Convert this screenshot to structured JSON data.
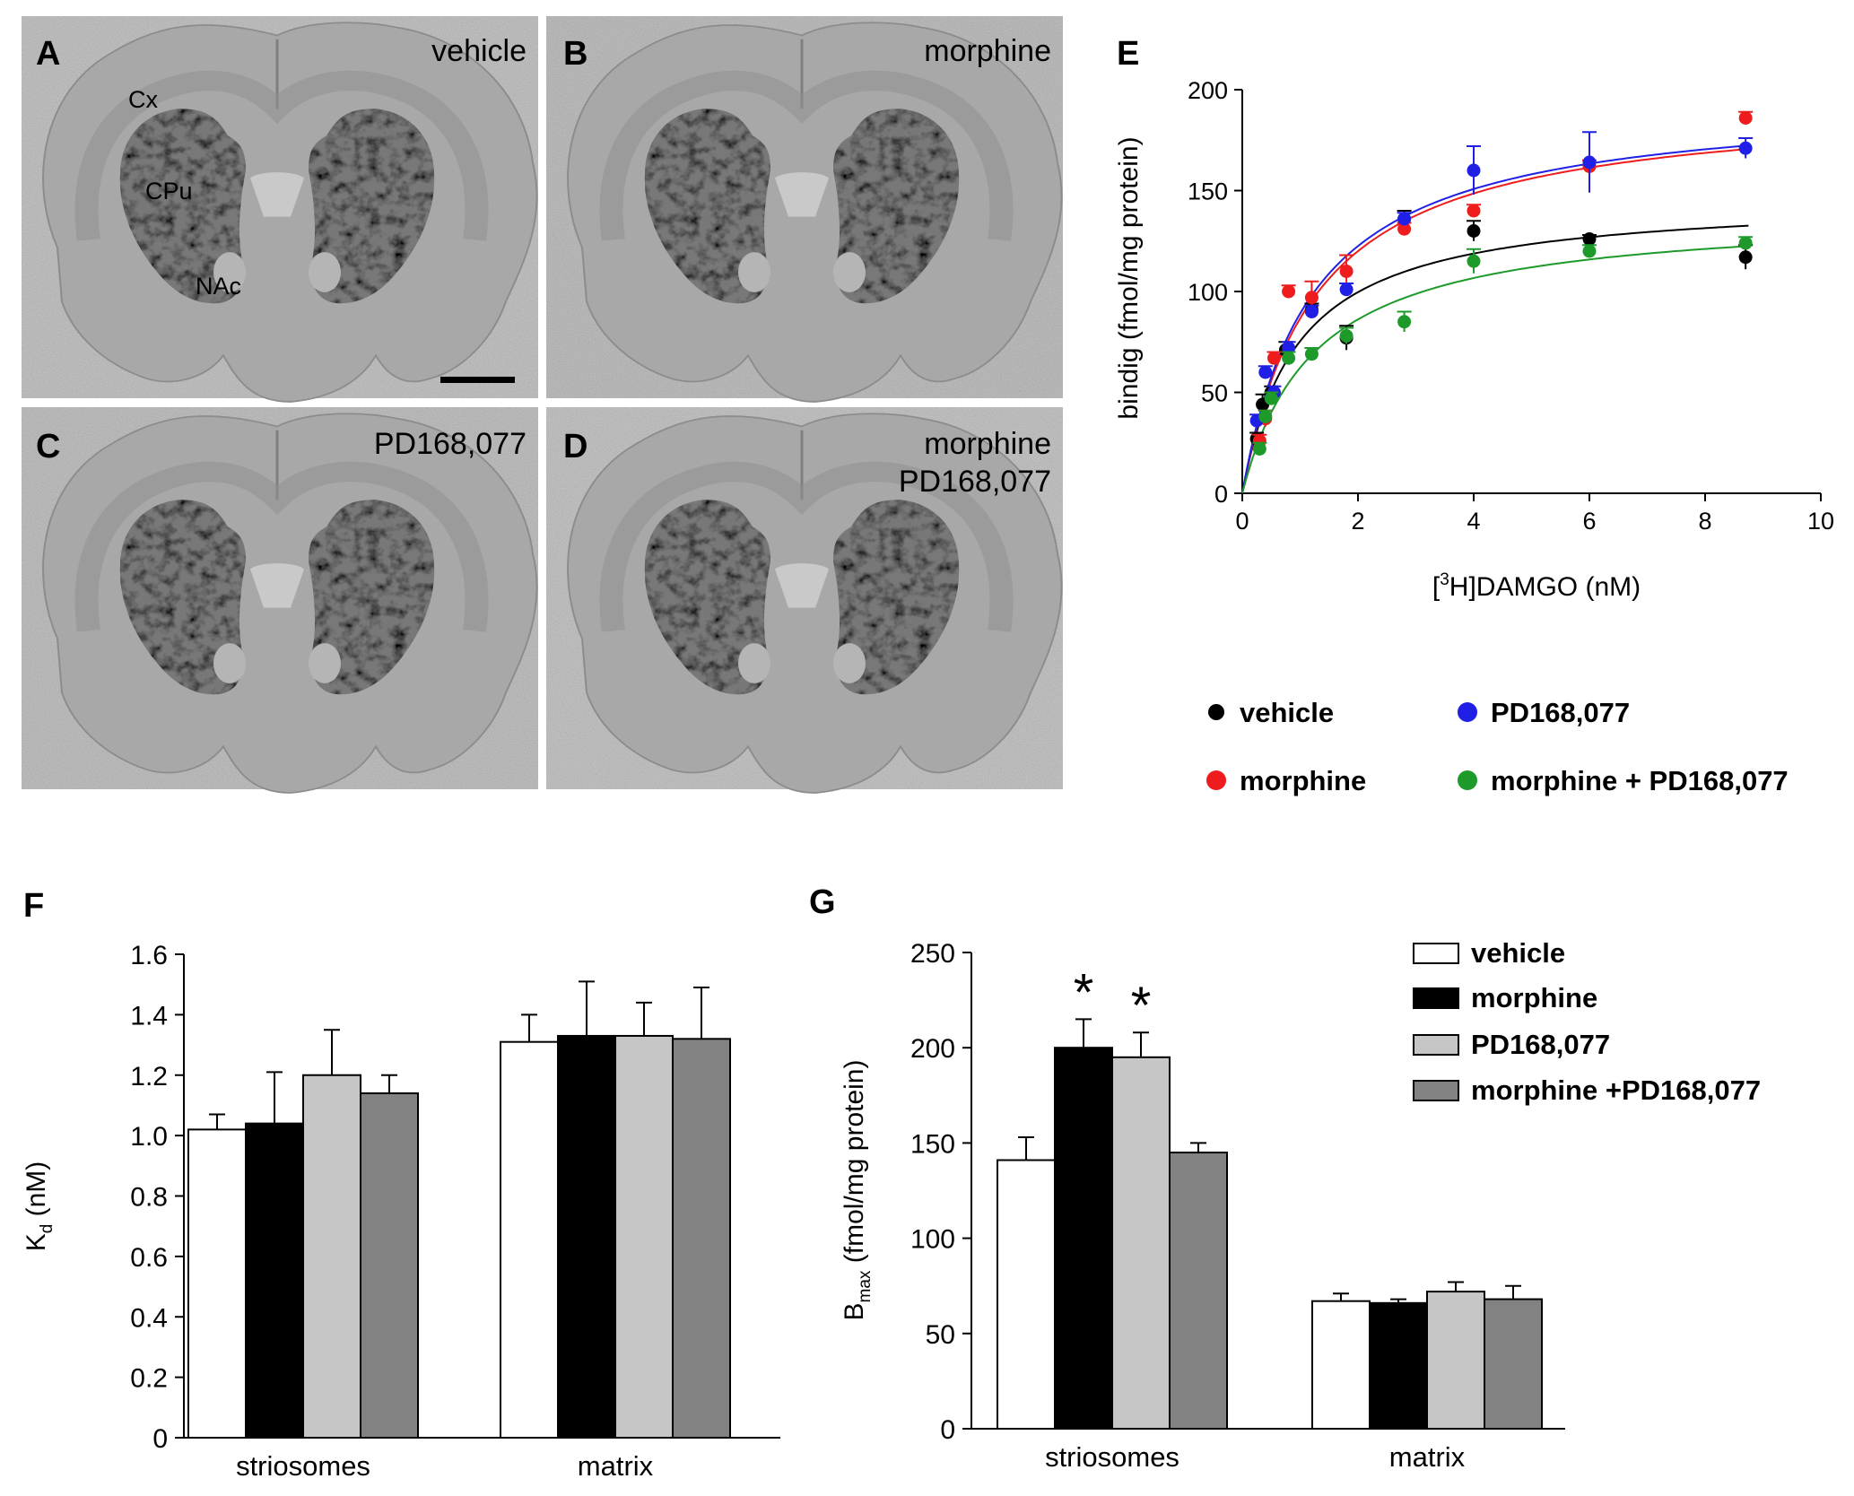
{
  "figure": {
    "panels": {
      "A": {
        "letter": "A",
        "label": "vehicle",
        "regions": {
          "cx": "Cx",
          "cpu": "CPu",
          "nac": "NAc"
        }
      },
      "B": {
        "letter": "B",
        "label": "morphine"
      },
      "C": {
        "letter": "C",
        "label": "PD168,077"
      },
      "D": {
        "letter": "D",
        "label_line1": "morphine",
        "label_line2": "PD168,077"
      }
    },
    "legend_E": {
      "vehicle": "vehicle",
      "pd": "PD168,077",
      "morphine": "morphine",
      "combo": "morphine + PD168,077"
    },
    "legend_G": {
      "vehicle": "vehicle",
      "morphine": "morphine",
      "pd": "PD168,077",
      "combo": "morphine +PD168,077"
    }
  },
  "colors": {
    "vehicle": "#000000",
    "morphine": "#ee1c1c",
    "pd": "#1f1fe6",
    "combo": "#1e9a2a",
    "bar_vehicle": "#ffffff",
    "bar_morphine": "#000000",
    "bar_pd": "#c6c6c6",
    "bar_combo": "#828282"
  },
  "chart_data": [
    {
      "panel": "E",
      "type": "scatter",
      "xlabel_prefix": "[",
      "xlabel_sup": "3",
      "xlabel_suffix": "H]DAMGO (nM)",
      "ylabel": "bindig (fmol/mg protein)",
      "xlim": [
        0,
        10
      ],
      "ylim": [
        0,
        200
      ],
      "xticks": [
        "0",
        "2",
        "4",
        "6",
        "8",
        "10"
      ],
      "yticks": [
        "0",
        "50",
        "100",
        "150",
        "200"
      ],
      "series": [
        {
          "name": "vehicle",
          "bmax": 147,
          "kd": 0.95,
          "x": [
            0.25,
            0.35,
            0.5,
            0.75,
            1.2,
            1.8,
            2.8,
            4.0,
            6.0,
            8.7
          ],
          "y": [
            27,
            44,
            50,
            71,
            91,
            77,
            136,
            130,
            126,
            117
          ],
          "err": [
            3,
            5,
            3,
            4,
            3,
            6,
            4,
            5,
            2,
            6
          ]
        },
        {
          "name": "morphine",
          "bmax": 195,
          "kd": 1.25,
          "x": [
            0.3,
            0.4,
            0.55,
            0.8,
            1.2,
            1.8,
            2.8,
            4.0,
            6.0,
            8.7
          ],
          "y": [
            26,
            37,
            67,
            100,
            97,
            110,
            131,
            140,
            162,
            186
          ],
          "err": [
            3,
            4,
            3,
            3,
            8,
            8,
            3,
            3,
            3,
            3
          ]
        },
        {
          "name": "PD168,077",
          "bmax": 196,
          "kd": 1.2,
          "x": [
            0.25,
            0.4,
            0.55,
            0.8,
            1.2,
            1.8,
            2.8,
            4.0,
            6.0,
            8.7
          ],
          "y": [
            36,
            60,
            50,
            72,
            90,
            101,
            136,
            160,
            164,
            171
          ],
          "err": [
            3,
            3,
            3,
            3,
            3,
            3,
            3,
            12,
            15,
            5
          ]
        },
        {
          "name": "morphine + PD168,077",
          "bmax": 140,
          "kd": 1.25,
          "x": [
            0.3,
            0.4,
            0.5,
            0.8,
            1.2,
            1.8,
            2.8,
            4.0,
            6.0,
            8.7
          ],
          "y": [
            22,
            38,
            47,
            67,
            69,
            78,
            85,
            115,
            120,
            124
          ],
          "err": [
            3,
            3,
            3,
            3,
            3,
            4,
            5,
            6,
            3,
            3
          ]
        }
      ]
    },
    {
      "panel": "F",
      "type": "bar",
      "ylabel_main": "K",
      "ylabel_sub": "d",
      "ylabel_rest": " (nM)",
      "categories": [
        "striosomes",
        "matrix"
      ],
      "ylim": [
        0,
        1.6
      ],
      "yticks": [
        "0",
        "0.2",
        "0.4",
        "0.6",
        "0.8",
        "1.0",
        "1.2",
        "1.4",
        "1.6"
      ],
      "series": [
        {
          "name": "vehicle",
          "values": [
            1.02,
            1.31
          ],
          "err": [
            0.05,
            0.09
          ]
        },
        {
          "name": "morphine",
          "values": [
            1.04,
            1.33
          ],
          "err": [
            0.17,
            0.18
          ]
        },
        {
          "name": "PD168,077",
          "values": [
            1.2,
            1.33
          ],
          "err": [
            0.15,
            0.11
          ]
        },
        {
          "name": "morphine +PD168,077",
          "values": [
            1.14,
            1.32
          ],
          "err": [
            0.06,
            0.17
          ]
        }
      ]
    },
    {
      "panel": "G",
      "type": "bar",
      "ylabel_main": "B",
      "ylabel_sub": "max",
      "ylabel_rest": " (fmol/mg protein)",
      "categories": [
        "striosomes",
        "matrix"
      ],
      "ylim": [
        0,
        250
      ],
      "yticks": [
        "0",
        "50",
        "100",
        "150",
        "200",
        "250"
      ],
      "significance": [
        "*",
        "*"
      ],
      "series": [
        {
          "name": "vehicle",
          "values": [
            141,
            67
          ],
          "err": [
            12,
            4
          ]
        },
        {
          "name": "morphine",
          "values": [
            200,
            66
          ],
          "err": [
            15,
            2
          ]
        },
        {
          "name": "PD168,077",
          "values": [
            195,
            72
          ],
          "err": [
            13,
            5
          ]
        },
        {
          "name": "morphine +PD168,077",
          "values": [
            145,
            68
          ],
          "err": [
            5,
            7
          ]
        }
      ]
    }
  ]
}
